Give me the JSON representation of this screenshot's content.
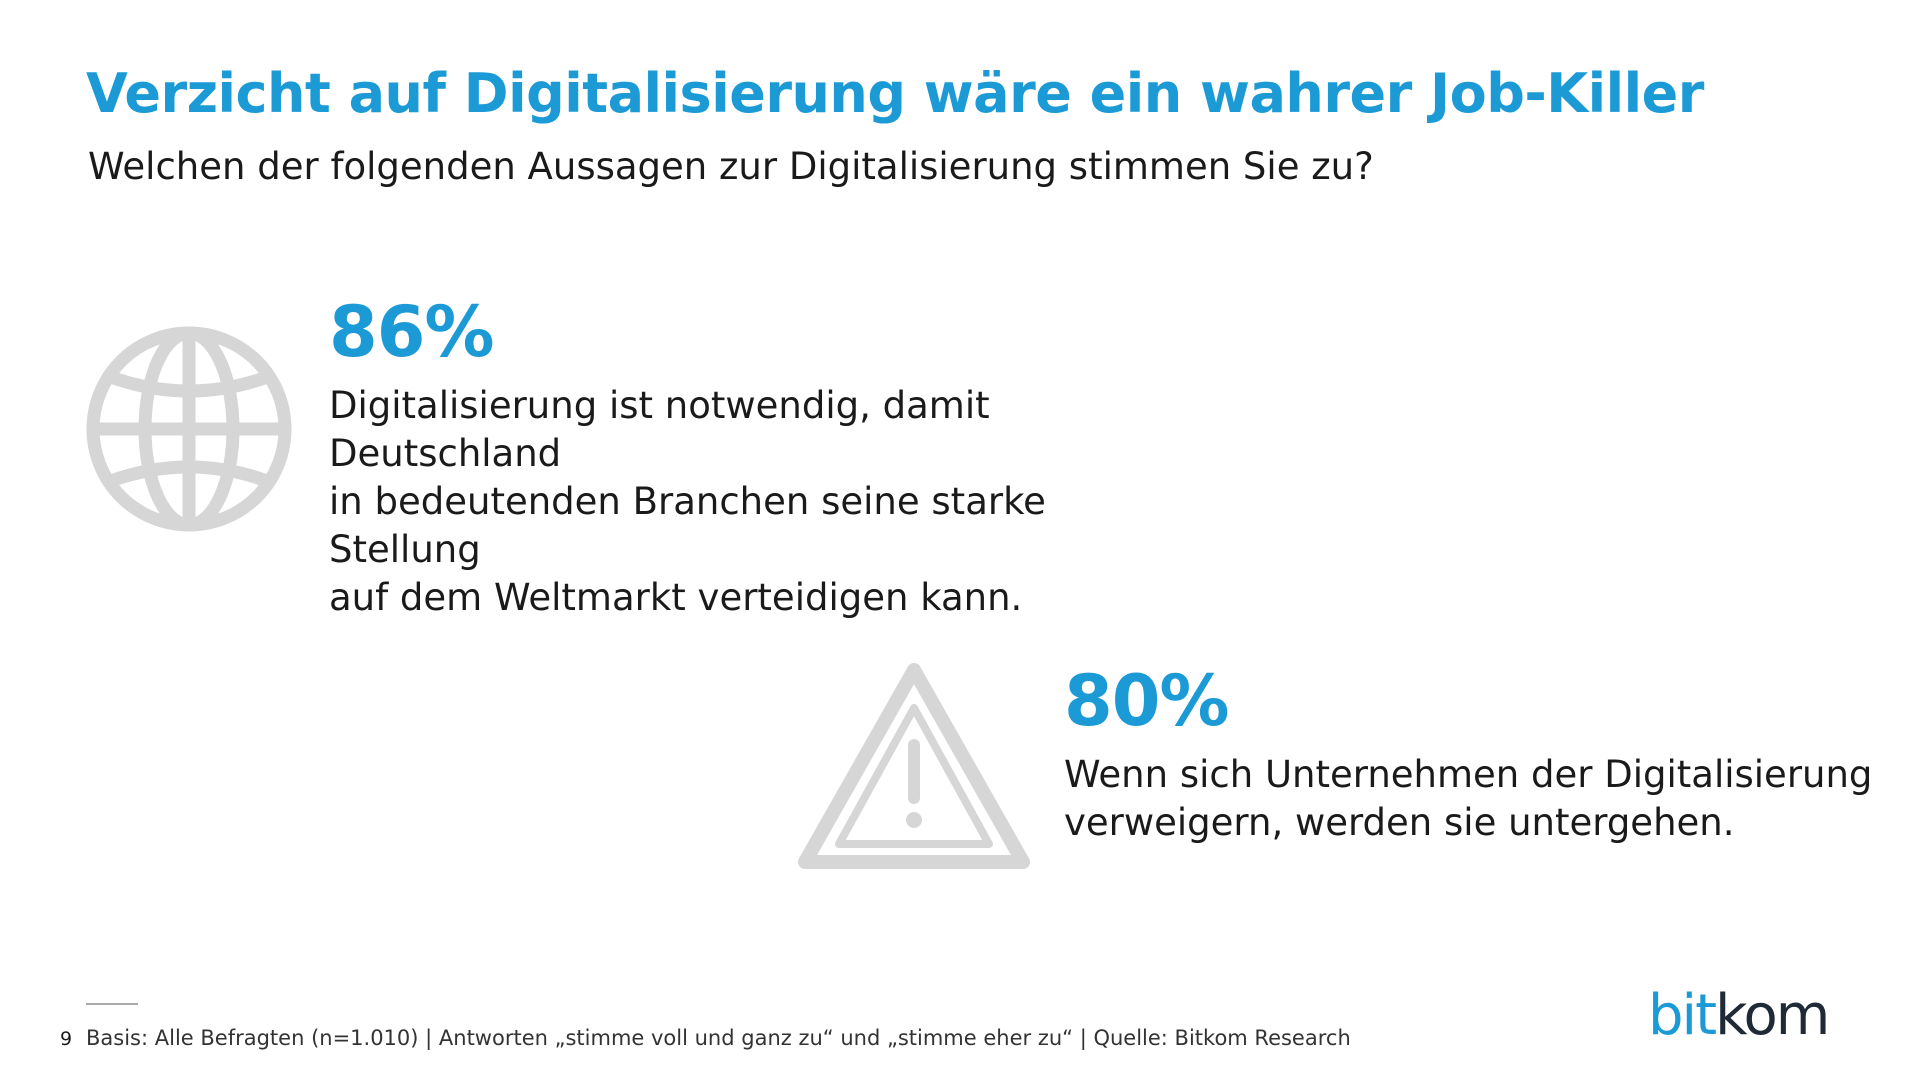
{
  "slide": {
    "title": "Verzicht auf Digitalisierung wäre ein wahrer Job-Killer",
    "subtitle": "Welchen der folgenden Aussagen zur Digitalisierung stimmen Sie zu?",
    "accent_color": "#1b9ad6",
    "icon_color": "#d6d6d6"
  },
  "stats": [
    {
      "value": "86%",
      "text": "Digitalisierung ist notwendig, damit Deutschland\nin bedeutenden Branchen seine starke Stellung\nauf dem Weltmarkt verteidigen kann.",
      "icon": "globe-icon"
    },
    {
      "value": "80%",
      "text": "Wenn sich Unternehmen der Digitalisierung\nverweigern, werden sie untergehen.",
      "icon": "warning-icon"
    }
  ],
  "footer": {
    "page_number": "9",
    "note": "Basis: Alle Befragten (n=1.010) | Antworten „stimme voll und ganz zu“ und „stimme eher zu“ | Quelle: Bitkom Research",
    "logo_part1": "bit",
    "logo_part2": "kom"
  }
}
